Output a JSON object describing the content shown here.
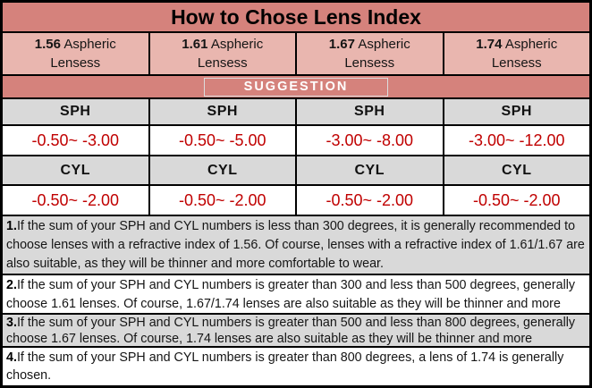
{
  "title": "How to Chose Lens Index",
  "suggestion_label": "SUGGESTION",
  "labels": {
    "sph": "SPH",
    "cyl": "CYL"
  },
  "columns": [
    {
      "number": "1.56",
      "type": "Aspheric",
      "line2": "Lensess",
      "sph_range": "-0.50~ -3.00",
      "cyl_range": "-0.50~ -2.00"
    },
    {
      "number": "1.61",
      "type": "Aspheric",
      "line2": "Lensess",
      "sph_range": "-0.50~ -5.00",
      "cyl_range": "-0.50~ -2.00"
    },
    {
      "number": "1.67",
      "type": "Aspheric",
      "line2": "Lensess",
      "sph_range": "-3.00~ -8.00",
      "cyl_range": "-0.50~ -2.00"
    },
    {
      "number": "1.74",
      "type": "Aspheric",
      "line2": "Lensess",
      "sph_range": "-3.00~ -12.00",
      "cyl_range": "-0.50~ -2.00"
    }
  ],
  "notes": [
    {
      "number": "1.",
      "text": "If the sum of your SPH and CYL numbers is less than 300 degrees, it is generally recommended to choose lenses with a refractive index of 1.56. Of course, lenses with a refractive index of 1.61/1.67 are also suitable, as they will be thinner and more comfortable to wear."
    },
    {
      "number": "2.",
      "text": "If the sum of your SPH and CYL numbers is greater than 300 and less than 500 degrees, generally choose 1.61 lenses. Of course, 1.67/1.74 lenses are also suitable as they will be thinner and more"
    },
    {
      "number": "3.",
      "text": "If the sum of your SPH and CYL numbers is greater than 500 and less than 800 degrees, generally choose 1.67 lenses. Of course, 1.74 lenses are also suitable as they will be thinner and more"
    },
    {
      "number": "4.",
      "text": "If the sum of your SPH and CYL numbers is greater than 800 degrees, a lens of 1.74 is generally chosen."
    }
  ],
  "colors": {
    "salmon_band": "#d5827c",
    "header_pink": "#e9b6af",
    "gray_band": "#d9d9d9",
    "value_red": "#c00000",
    "border_black": "#000000",
    "suggestion_text": "#ffffff"
  }
}
